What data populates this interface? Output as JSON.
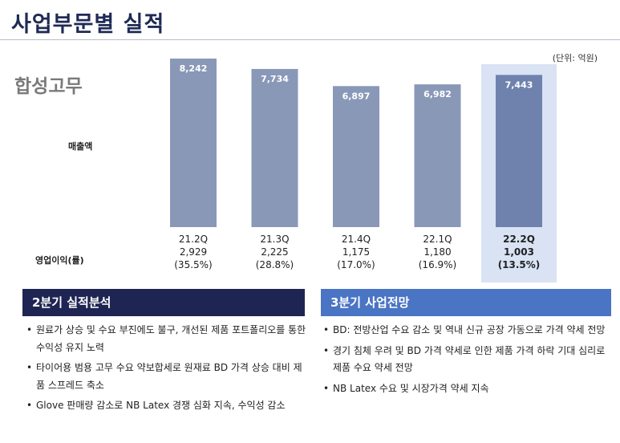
{
  "page_title": "사업부문별 실적",
  "section_label": "합성고무",
  "unit_label": "(단위: 억원)",
  "revenue_label": "매출액",
  "op_label": "영업이익(률)",
  "colors": {
    "bar": "#8a98b8",
    "bar_highlight": "#6e82ad",
    "highlight_bg": "#d9e3f4",
    "title": "#1f2a56"
  },
  "chart_data": {
    "type": "bar",
    "categories": [
      "21.2Q",
      "21.3Q",
      "21.4Q",
      "22.1Q",
      "22.2Q"
    ],
    "series": [
      {
        "name": "매출액",
        "values": [
          8242,
          7734,
          6897,
          6982,
          7443
        ],
        "labels": [
          "8,242",
          "7,734",
          "6,897",
          "6,982",
          "7,443"
        ]
      }
    ],
    "operating_profit": [
      "2,929",
      "2,225",
      "1,175",
      "1,180",
      "1,003"
    ],
    "operating_margin": [
      "(35.5%)",
      "(28.8%)",
      "(17.0%)",
      "(16.9%)",
      "(13.5%)"
    ],
    "highlight_index": 4,
    "grid": false
  },
  "left_panel": {
    "title": "2분기 실적분석",
    "bullets": [
      "원료가 상승 및 수요 부진에도 불구, 개선된 제품 포트폴리오를 통한 수익성 유지 노력",
      "타이어용 범용 고무 수요 약보합세로 원재료 BD 가격 상승 대비 제품 스프레드 축소",
      "Glove 판매량 감소로 NB Latex 경쟁 심화 지속, 수익성 감소"
    ]
  },
  "right_panel": {
    "title": "3분기 사업전망",
    "bullets": [
      "BD: 전방산업 수요 감소 및 역내 신규 공장 가동으로 가격 약세 전망",
      "경기 침체 우려 및 BD 가격 약세로 인한 제품 가격 하락 기대 심리로 제품 수요 약세 전망",
      "NB Latex 수요 및 시장가격 약세 지속"
    ]
  }
}
